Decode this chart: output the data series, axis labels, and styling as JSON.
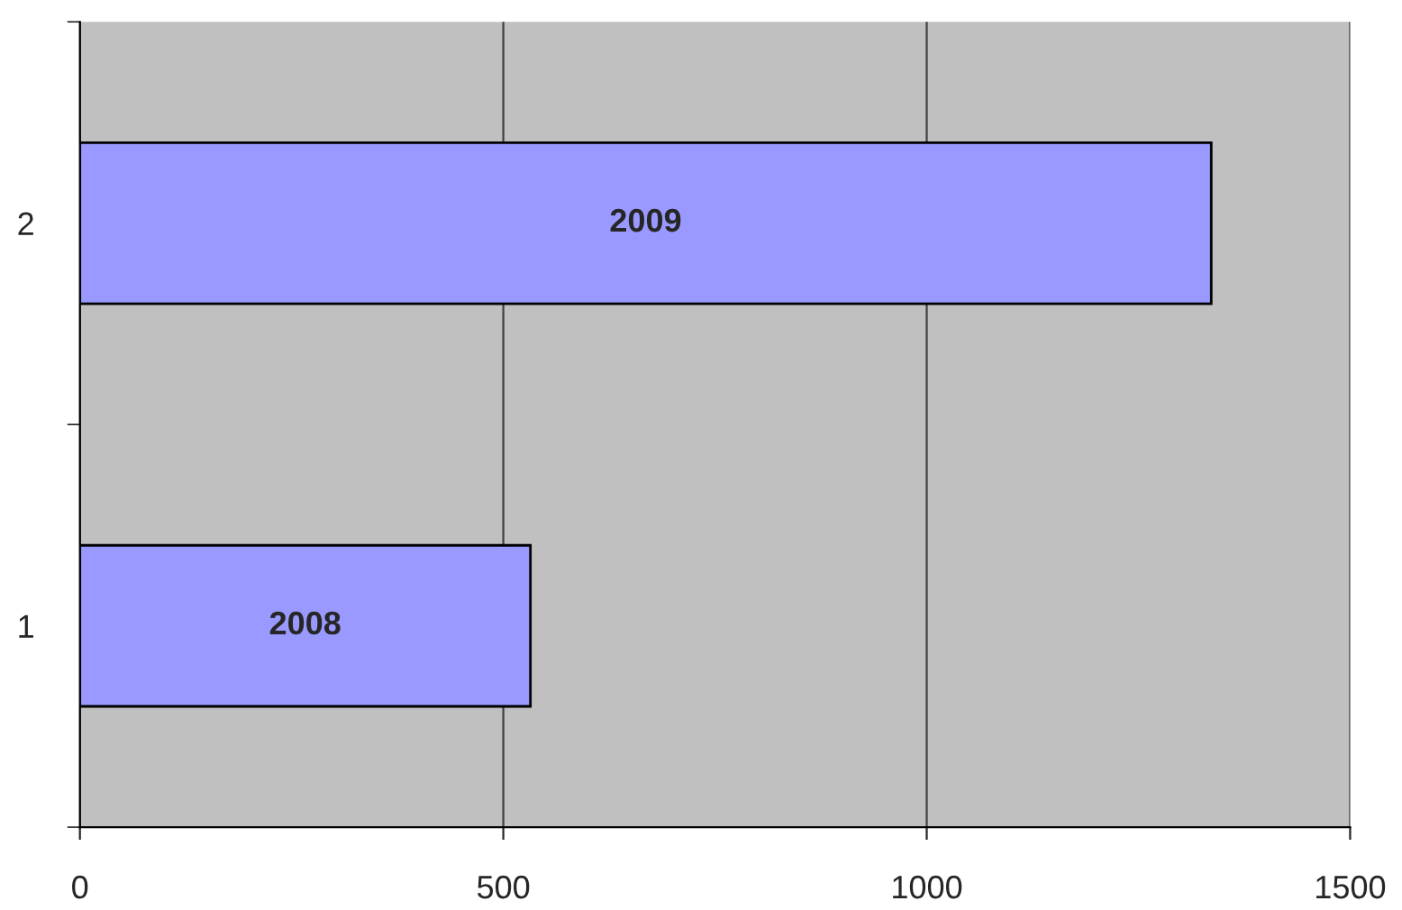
{
  "chart_data": {
    "type": "bar",
    "orientation": "horizontal",
    "categories": [
      "2",
      "1"
    ],
    "series": [
      {
        "name": "2009",
        "color": "#9999ff",
        "values": [
          1336,
          null
        ]
      },
      {
        "name": "2008",
        "color": "#9999ff",
        "values": [
          null,
          532
        ]
      }
    ],
    "xlim": [
      0,
      1500
    ],
    "xticks": [
      0,
      500,
      1000,
      1500
    ],
    "grid": "x",
    "legend": false
  }
}
